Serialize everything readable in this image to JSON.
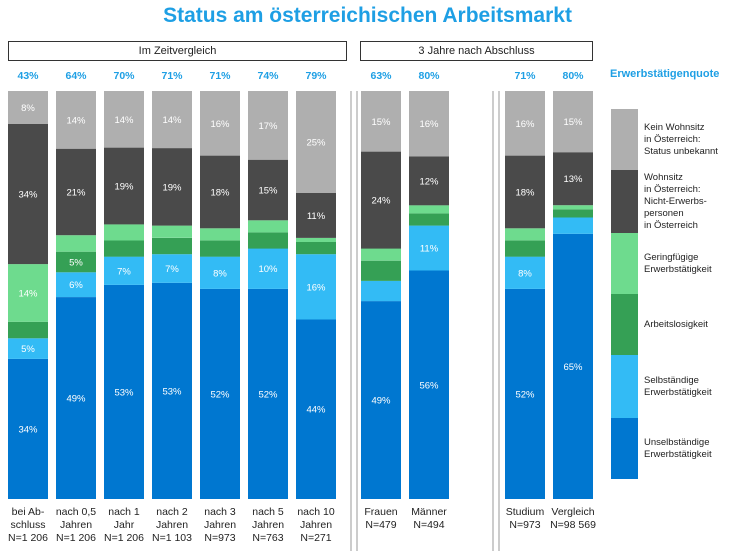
{
  "title": "Status am österreichischen Arbeitsmarkt",
  "panel_headers": [
    "Im Zeitvergleich",
    "3 Jahre nach Abschluss"
  ],
  "quote_label": "Erwerbstätigenquote",
  "colors": {
    "Unselbständige Erwerbstätigkeit": "#0077D0",
    "Selbständige Erwerbstätigkeit": "#33BBF5",
    "Arbeitslosigkeit": "#35A055",
    "Geringfügige Erwerbstätigkeit": "#6EDB8E",
    "Nicht-Erwerbspersonen": "#4A4A4A",
    "Status unbekannt": "#AFAFAF",
    "quote": "#1E9FE4"
  },
  "legend": [
    {
      "key": "Status unbekannt",
      "lines": [
        "Kein Wohnsitz",
        "in Österreich:",
        "Status unbekannt"
      ]
    },
    {
      "key": "Nicht-Erwerbspersonen",
      "lines": [
        "Wohnsitz",
        "in Österreich:",
        "Nicht-Erwerbs-",
        "personen",
        "in Österreich"
      ]
    },
    {
      "key": "Geringfügige Erwerbstätigkeit",
      "lines": [
        "Geringfügige",
        "Erwerbstätigkeit"
      ]
    },
    {
      "key": "Arbeitslosigkeit",
      "lines": [
        "Arbeitslosigkeit"
      ]
    },
    {
      "key": "Selbständige Erwerbstätigkeit",
      "lines": [
        "Selbständige",
        "Erwerbstätigkeit"
      ]
    },
    {
      "key": "Unselbständige Erwerbstätigkeit",
      "lines": [
        "Unselbständige",
        "Erwerbstätigkeit"
      ]
    }
  ],
  "chart_data": {
    "type": "bar",
    "stacked": true,
    "normalized": true,
    "title": "Status am österreichischen Arbeitsmarkt",
    "series_order": [
      "Unselbständige Erwerbstätigkeit",
      "Selbständige Erwerbstätigkeit",
      "Arbeitslosigkeit",
      "Geringfügige Erwerbstätigkeit",
      "Nicht-Erwerbspersonen",
      "Status unbekannt"
    ],
    "bars": [
      {
        "group": "Im Zeitvergleich",
        "label": [
          "bei Ab-",
          "schluss",
          "N=1 206"
        ],
        "quote": "43%",
        "values": [
          34,
          5,
          4,
          14,
          34,
          8
        ],
        "labels": [
          "34%",
          "5%",
          "",
          "14%",
          "34%",
          "8%"
        ]
      },
      {
        "group": "Im Zeitvergleich",
        "label": [
          "nach 0,5",
          "Jahren",
          "N=1 206"
        ],
        "quote": "64%",
        "values": [
          49,
          6,
          5,
          4,
          21,
          14
        ],
        "labels": [
          "49%",
          "6%",
          "5%",
          "",
          "21%",
          "14%"
        ]
      },
      {
        "group": "Im Zeitvergleich",
        "label": [
          "nach 1",
          "Jahr",
          "N=1 206"
        ],
        "quote": "70%",
        "values": [
          53,
          7,
          4,
          4,
          19,
          14
        ],
        "labels": [
          "53%",
          "7%",
          "",
          "",
          "19%",
          "14%"
        ]
      },
      {
        "group": "Im Zeitvergleich",
        "label": [
          "nach 2",
          "Jahren",
          "N=1 103"
        ],
        "quote": "71%",
        "values": [
          53,
          7,
          4,
          3,
          19,
          14
        ],
        "labels": [
          "53%",
          "7%",
          "",
          "",
          "19%",
          "14%"
        ]
      },
      {
        "group": "Im Zeitvergleich",
        "label": [
          "nach 3",
          "Jahren",
          "N=973"
        ],
        "quote": "71%",
        "values": [
          52,
          8,
          4,
          3,
          18,
          16
        ],
        "labels": [
          "52%",
          "8%",
          "",
          "",
          "18%",
          "16%"
        ]
      },
      {
        "group": "Im Zeitvergleich",
        "label": [
          "nach 5",
          "Jahren",
          "N=763"
        ],
        "quote": "74%",
        "values": [
          52,
          10,
          4,
          3,
          15,
          17
        ],
        "labels": [
          "52%",
          "10%",
          "",
          "",
          "15%",
          "17%"
        ]
      },
      {
        "group": "Im Zeitvergleich",
        "label": [
          "nach 10",
          "Jahren",
          "N=271"
        ],
        "quote": "79%",
        "values": [
          44,
          16,
          3,
          1,
          11,
          25
        ],
        "labels": [
          "44%",
          "16%",
          "",
          "",
          "11%",
          "25%"
        ]
      },
      {
        "group": "3 Jahre nach Abschluss",
        "label": [
          "Frauen",
          "N=479"
        ],
        "quote": "63%",
        "values": [
          49,
          5,
          5,
          3,
          24,
          15
        ],
        "labels": [
          "49%",
          "",
          "",
          "",
          "24%",
          "15%"
        ]
      },
      {
        "group": "3 Jahre nach Abschluss",
        "label": [
          "Männer",
          "N=494"
        ],
        "quote": "80%",
        "values": [
          56,
          11,
          3,
          2,
          12,
          16
        ],
        "labels": [
          "56%",
          "11%",
          "",
          "",
          "12%",
          "16%"
        ]
      },
      {
        "group": "3 Jahre nach Abschluss",
        "label": [
          "Studium",
          "N=973"
        ],
        "quote": "71%",
        "values": [
          52,
          8,
          4,
          3,
          18,
          16
        ],
        "labels": [
          "52%",
          "8%",
          "",
          "",
          "18%",
          "16%"
        ]
      },
      {
        "group": "3 Jahre nach Abschluss",
        "label": [
          "Vergleich",
          "N=98 569"
        ],
        "quote": "80%",
        "values": [
          65,
          4,
          2,
          1,
          13,
          15
        ],
        "labels": [
          "65%",
          "",
          "",
          "",
          "13%",
          "15%"
        ]
      }
    ]
  }
}
